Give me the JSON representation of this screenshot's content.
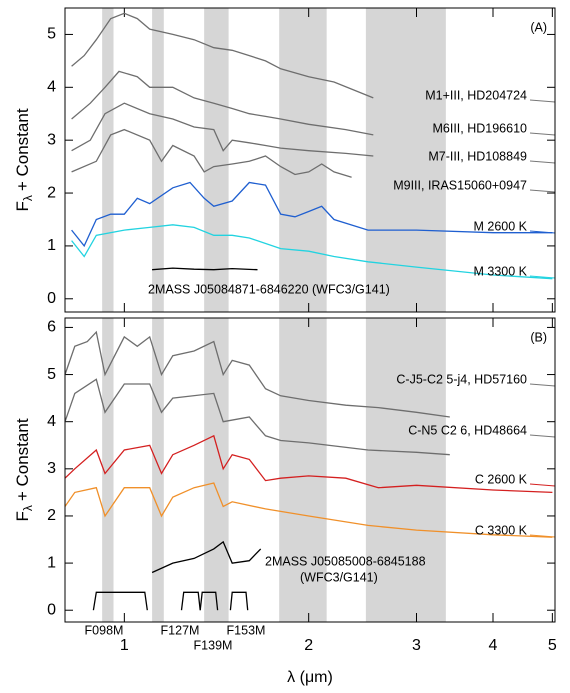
{
  "chart_data": [
    {
      "type": "line",
      "panel_label": "(A)",
      "ylabel": [
        "F",
        "λ",
        "+ Constant"
      ],
      "log_x": true,
      "xlim": [
        0.8,
        5.05
      ],
      "ylim": [
        -0.25,
        5.5
      ],
      "xticks": [
        1,
        2,
        3,
        4,
        5
      ],
      "yticks": [
        0,
        1,
        2,
        3,
        4,
        5
      ],
      "bands": [
        [
          0.92,
          0.96
        ],
        [
          1.11,
          1.16
        ],
        [
          1.35,
          1.48
        ],
        [
          1.79,
          2.14
        ],
        [
          2.48,
          3.35
        ]
      ],
      "series": [
        {
          "name": "M1+III, HD204724",
          "color": "#6e6e6e",
          "x": [
            0.82,
            0.86,
            0.9,
            0.95,
            1.0,
            1.05,
            1.1,
            1.2,
            1.3,
            1.4,
            1.5,
            1.6,
            1.7,
            1.8,
            2.0,
            2.2,
            2.55
          ],
          "values": [
            4.4,
            4.6,
            4.9,
            5.3,
            5.4,
            5.3,
            5.1,
            5.0,
            4.9,
            4.75,
            4.7,
            4.6,
            4.5,
            4.35,
            4.2,
            4.1,
            3.8
          ]
        },
        {
          "name": "M6III, HD196610",
          "color": "#6e6e6e",
          "x": [
            0.82,
            0.88,
            0.93,
            0.98,
            1.05,
            1.1,
            1.2,
            1.3,
            1.4,
            1.5,
            1.6,
            1.7,
            1.8,
            2.0,
            2.3,
            2.55
          ],
          "values": [
            3.4,
            3.7,
            4.0,
            4.3,
            4.2,
            4.0,
            4.0,
            3.8,
            3.7,
            3.6,
            3.5,
            3.45,
            3.4,
            3.3,
            3.2,
            3.1
          ]
        },
        {
          "name": "M7-III, HD108849",
          "color": "#6e6e6e",
          "x": [
            0.82,
            0.88,
            0.93,
            1.0,
            1.1,
            1.2,
            1.3,
            1.4,
            1.45,
            1.5,
            1.6,
            1.7,
            1.8,
            2.0,
            2.3,
            2.55
          ],
          "values": [
            2.8,
            3.0,
            3.5,
            3.7,
            3.5,
            3.4,
            3.25,
            3.2,
            2.8,
            3.0,
            2.95,
            2.9,
            2.85,
            2.8,
            2.75,
            2.7
          ]
        },
        {
          "name": "M9III, IRAS15060+0947",
          "color": "#6e6e6e",
          "x": [
            0.82,
            0.9,
            0.95,
            1.0,
            1.1,
            1.15,
            1.2,
            1.3,
            1.35,
            1.4,
            1.5,
            1.6,
            1.7,
            1.8,
            1.9,
            2.0,
            2.1,
            2.2,
            2.35
          ],
          "values": [
            2.4,
            2.6,
            3.1,
            3.2,
            3.0,
            2.6,
            2.9,
            2.7,
            2.4,
            2.5,
            2.55,
            2.6,
            2.7,
            2.5,
            2.35,
            2.4,
            2.55,
            2.4,
            2.3
          ]
        },
        {
          "name": "M 2600 K",
          "color": "#1f5fd0",
          "x": [
            0.82,
            0.86,
            0.9,
            0.95,
            1.0,
            1.05,
            1.1,
            1.2,
            1.28,
            1.35,
            1.4,
            1.5,
            1.6,
            1.7,
            1.8,
            1.9,
            2.0,
            2.1,
            2.2,
            2.5,
            3.0,
            4.0,
            5.0
          ],
          "values": [
            1.3,
            1.0,
            1.5,
            1.6,
            1.6,
            1.9,
            1.8,
            2.1,
            2.2,
            1.9,
            1.75,
            1.85,
            2.2,
            2.15,
            1.6,
            1.55,
            1.65,
            1.75,
            1.5,
            1.3,
            1.3,
            1.25,
            1.25
          ]
        },
        {
          "name": "M 3300 K",
          "color": "#22d3e0",
          "x": [
            0.82,
            0.86,
            0.9,
            1.0,
            1.1,
            1.2,
            1.3,
            1.4,
            1.5,
            1.6,
            1.8,
            2.0,
            2.2,
            2.5,
            3.0,
            4.0,
            5.0
          ],
          "values": [
            1.1,
            0.8,
            1.2,
            1.3,
            1.35,
            1.4,
            1.35,
            1.2,
            1.2,
            1.15,
            0.95,
            0.9,
            0.8,
            0.7,
            0.6,
            0.45,
            0.38
          ]
        },
        {
          "name": "2MASS J05084871-6846220 (WFC3/G141)",
          "color": "#000000",
          "x": [
            1.11,
            1.2,
            1.3,
            1.4,
            1.5,
            1.65
          ],
          "values": [
            0.55,
            0.58,
            0.56,
            0.55,
            0.57,
            0.55
          ]
        }
      ]
    },
    {
      "type": "line",
      "panel_label": "(B)",
      "ylabel": [
        "F",
        "λ",
        "+ Constant"
      ],
      "xlabel": "λ (μm)",
      "log_x": true,
      "xlim": [
        0.8,
        5.05
      ],
      "ylim": [
        -0.25,
        6.2
      ],
      "xticks": [
        1,
        2,
        3,
        4,
        5
      ],
      "yticks": [
        0,
        1,
        2,
        3,
        4,
        5,
        6
      ],
      "bands": [
        [
          0.92,
          0.96
        ],
        [
          1.11,
          1.16
        ],
        [
          1.35,
          1.48
        ],
        [
          1.79,
          2.14
        ],
        [
          2.48,
          3.35
        ]
      ],
      "series": [
        {
          "name": "C-J5-C2 5-j4, HD57160",
          "color": "#6e6e6e",
          "x": [
            0.8,
            0.83,
            0.87,
            0.9,
            0.93,
            1.0,
            1.05,
            1.1,
            1.15,
            1.2,
            1.3,
            1.4,
            1.45,
            1.5,
            1.6,
            1.7,
            1.8,
            2.0,
            2.3,
            2.6,
            3.0,
            3.4
          ],
          "values": [
            5.0,
            5.6,
            5.7,
            5.9,
            5.0,
            5.8,
            5.6,
            5.8,
            5.0,
            5.4,
            5.5,
            5.7,
            5.0,
            5.3,
            5.2,
            4.7,
            4.55,
            4.45,
            4.35,
            4.3,
            4.2,
            4.1
          ]
        },
        {
          "name": "C-N5 C2 6, HD48664",
          "color": "#6e6e6e",
          "x": [
            0.8,
            0.83,
            0.9,
            0.93,
            1.0,
            1.1,
            1.15,
            1.2,
            1.4,
            1.45,
            1.6,
            1.7,
            1.8,
            2.0,
            2.5,
            3.0,
            3.4
          ],
          "values": [
            4.0,
            4.6,
            4.9,
            4.2,
            4.8,
            4.8,
            4.2,
            4.5,
            4.6,
            4.0,
            4.1,
            3.7,
            3.6,
            3.55,
            3.4,
            3.35,
            3.3
          ]
        },
        {
          "name": "C 2600 K",
          "color": "#d42020",
          "x": [
            0.8,
            0.83,
            0.9,
            0.93,
            1.0,
            1.1,
            1.15,
            1.2,
            1.3,
            1.4,
            1.45,
            1.5,
            1.6,
            1.7,
            1.8,
            2.0,
            2.3,
            2.6,
            3.0,
            4.0,
            5.0
          ],
          "values": [
            2.8,
            3.0,
            3.4,
            2.9,
            3.4,
            3.5,
            2.9,
            3.3,
            3.5,
            3.7,
            3.0,
            3.3,
            3.2,
            2.75,
            2.8,
            2.85,
            2.8,
            2.6,
            2.65,
            2.55,
            2.5
          ]
        },
        {
          "name": "C 3300 K",
          "color": "#f0902a",
          "x": [
            0.8,
            0.83,
            0.9,
            0.93,
            1.0,
            1.1,
            1.15,
            1.2,
            1.3,
            1.4,
            1.45,
            1.5,
            1.7,
            2.0,
            2.5,
            3.0,
            4.0,
            5.0
          ],
          "values": [
            2.2,
            2.5,
            2.6,
            2.0,
            2.6,
            2.6,
            2.0,
            2.4,
            2.6,
            2.7,
            2.2,
            2.3,
            2.15,
            2.0,
            1.8,
            1.7,
            1.6,
            1.55
          ]
        },
        {
          "name": "2MASS J05085008-6845188",
          "note": "(WFC3/G141)",
          "color": "#000000",
          "x": [
            1.11,
            1.2,
            1.3,
            1.4,
            1.45,
            1.5,
            1.6,
            1.67
          ],
          "values": [
            0.8,
            1.0,
            1.1,
            1.3,
            1.45,
            1.0,
            1.05,
            1.3
          ]
        }
      ],
      "filters": [
        {
          "name": "F098M",
          "x": [
            0.89,
            0.9,
            1.08,
            1.09
          ],
          "values": [
            0,
            0.38,
            0.38,
            0
          ]
        },
        {
          "name": "F127M",
          "x": [
            1.24,
            1.25,
            1.32,
            1.33
          ],
          "values": [
            0,
            0.38,
            0.38,
            0
          ]
        },
        {
          "name": "F139M",
          "x": [
            1.33,
            1.34,
            1.41,
            1.42
          ],
          "values": [
            0,
            0.38,
            0.38,
            0
          ]
        },
        {
          "name": "F153M",
          "x": [
            1.49,
            1.5,
            1.58,
            1.59
          ],
          "values": [
            0,
            0.38,
            0.38,
            0
          ]
        }
      ]
    }
  ]
}
